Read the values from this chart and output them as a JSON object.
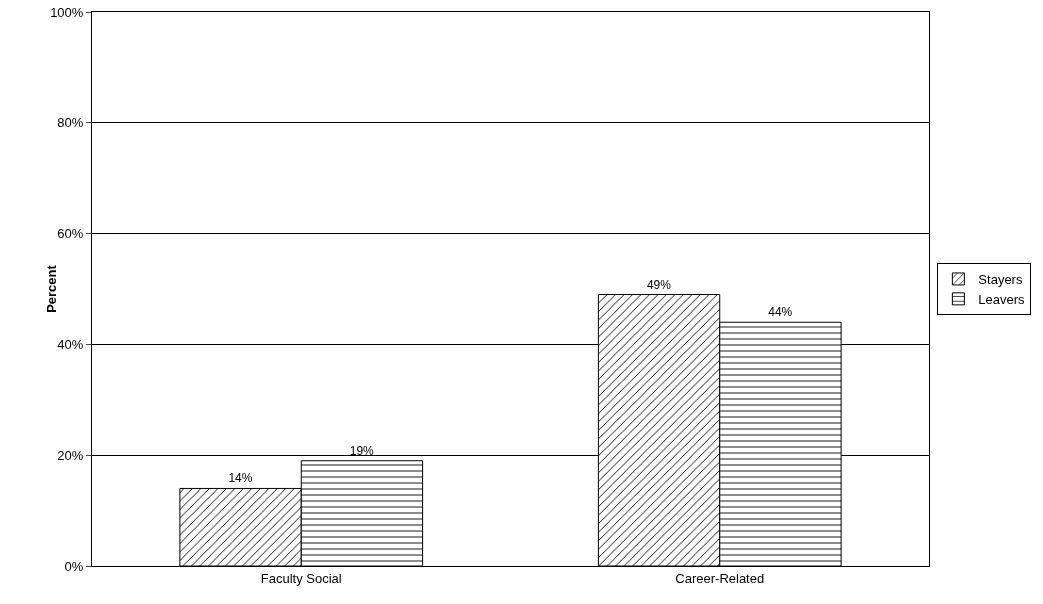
{
  "chart_data": {
    "type": "bar",
    "ylabel": "Percent",
    "categories": [
      "Faculty Social",
      "Career-Related"
    ],
    "series": [
      {
        "name": "Stayers",
        "color": "#000000",
        "values": [
          14,
          49
        ],
        "value_labels": [
          "14%",
          "49%"
        ]
      },
      {
        "name": "Leavers",
        "color": "#000000",
        "values": [
          19,
          44
        ],
        "value_labels": [
          "19%",
          "44%"
        ]
      }
    ],
    "ylim": [
      0,
      100
    ],
    "yticks": [
      {
        "value": 0,
        "label": "0%"
      },
      {
        "value": 20,
        "label": "20%"
      },
      {
        "value": 40,
        "label": "40%"
      },
      {
        "value": 60,
        "label": "60%"
      },
      {
        "value": 80,
        "label": "80%"
      },
      {
        "value": 100,
        "label": "100%"
      }
    ],
    "grid": "y",
    "legend": "right"
  }
}
